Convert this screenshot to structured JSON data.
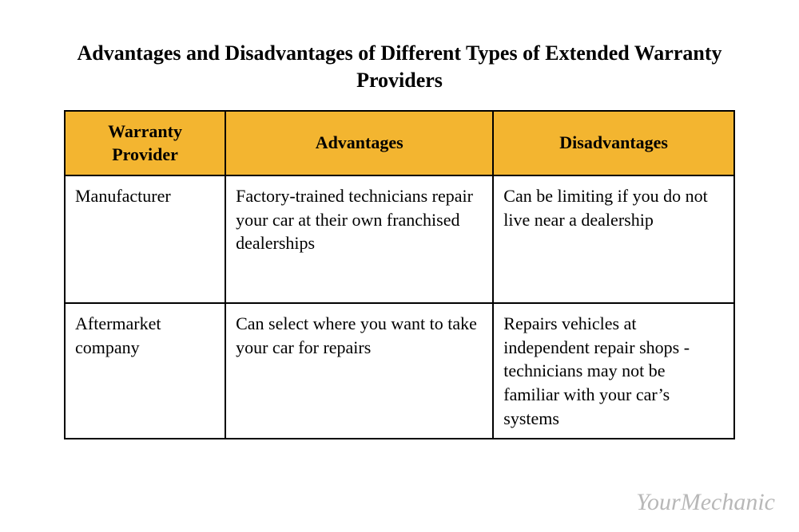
{
  "title": "Advantages and Disadvantages of Different Types of Extended Warranty Providers",
  "table": {
    "header_bg": "#f3b530",
    "header_color": "#000000",
    "border_color": "#000000",
    "cell_bg": "#ffffff",
    "columns": [
      {
        "label": "Warranty Provider",
        "width_pct": 24
      },
      {
        "label": "Advantages",
        "width_pct": 40
      },
      {
        "label": "Disadvantages",
        "width_pct": 36
      }
    ],
    "rows": [
      {
        "provider": "Manufacturer",
        "advantages": "Factory-trained technicians repair your car at their own franchised dealerships",
        "disadvantages": "Can be limiting if you do not live near a dealership"
      },
      {
        "provider": "Aftermarket company",
        "advantages": "Can select where you want to take your car for repairs",
        "disadvantages": "Repairs vehicles at independent repair shops - technicians may not be familiar with your car’s systems"
      }
    ]
  },
  "watermark": "YourMechanic",
  "title_fontsize": 26,
  "cell_fontsize": 22,
  "background_color": "#ffffff"
}
